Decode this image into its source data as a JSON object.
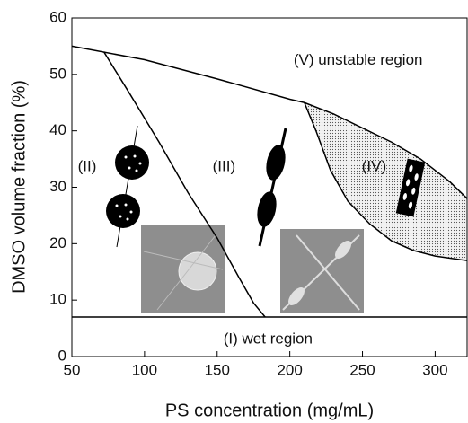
{
  "chart_data": {
    "type": "phase",
    "xlabel": "PS concentration (mg/mL)",
    "ylabel": "DMSO volume fraction (%)",
    "xlim": [
      50,
      322
    ],
    "ylim": [
      0,
      60
    ],
    "xticks": [
      50,
      100,
      150,
      200,
      250,
      300
    ],
    "yticks": [
      0,
      10,
      20,
      30,
      40,
      50,
      60
    ],
    "color": "#000000",
    "curves": [
      {
        "x": [
          50,
          100,
          150,
          200,
          210,
          230,
          250,
          270,
          290,
          310,
          322
        ],
        "y": [
          55,
          52.6,
          49.2,
          45.6,
          45,
          43,
          40.5,
          38,
          35,
          31,
          28
        ]
      },
      {
        "x": [
          72,
          90,
          110,
          130,
          150,
          165,
          175,
          183
        ],
        "y": [
          54,
          46.5,
          38,
          29,
          21,
          14,
          9.5,
          7
        ]
      },
      {
        "x": [
          210,
          218,
          228,
          240,
          255,
          270,
          285,
          300,
          322
        ],
        "y": [
          45,
          40,
          33,
          27.5,
          23.5,
          20.5,
          18.8,
          17.8,
          17
        ]
      },
      {
        "x": [
          50,
          322
        ],
        "y": [
          7,
          7
        ]
      }
    ],
    "fill_region": "(IV)",
    "annotations": [
      {
        "text": "(V) unstable region",
        "x": 247,
        "y": 52.4
      },
      {
        "text": "(I) wet region",
        "x": 185,
        "y": 3
      },
      {
        "text": "(II)",
        "x": 60.5,
        "y": 33.6
      },
      {
        "text": "(III)",
        "x": 154.7,
        "y": 33.6
      },
      {
        "text": "(IV)",
        "x": 258,
        "y": 33.6
      }
    ]
  }
}
